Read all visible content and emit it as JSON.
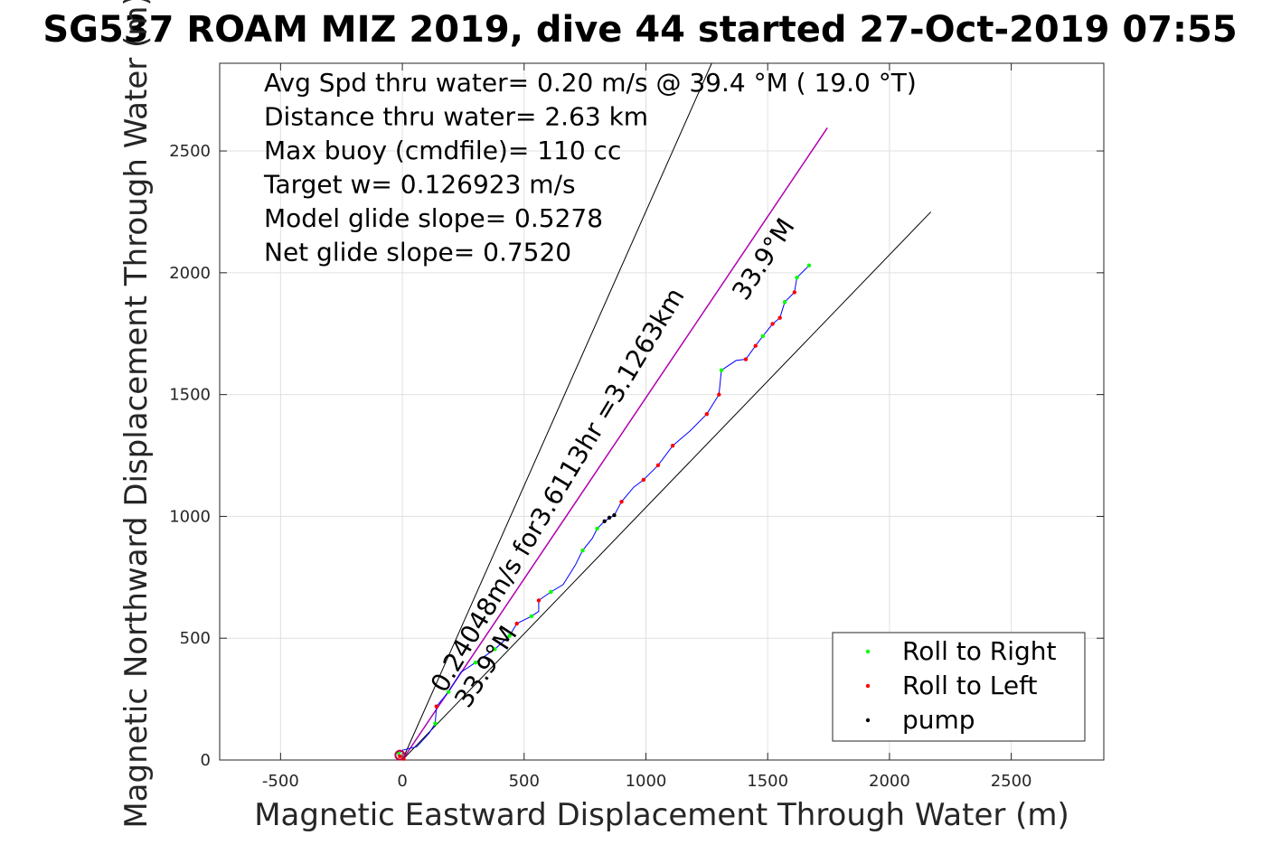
{
  "chart_data": {
    "type": "scatter",
    "title": "SG537 ROAM MIZ 2019, dive 44 started 27-Oct-2019 07:55",
    "xlabel": "Magnetic Eastward Displacement Through Water (m)",
    "ylabel": "Magnetic Northward Displacement Through Water (m)",
    "xlim": [
      -750,
      2880
    ],
    "ylim": [
      0,
      2860
    ],
    "xticks": [
      -500,
      0,
      500,
      1000,
      1500,
      2000,
      2500
    ],
    "yticks": [
      0,
      500,
      1000,
      1500,
      2000,
      2500
    ],
    "grid": true,
    "legend_position": "bottom-right",
    "info_lines": [
      "Avg Spd thru water=  0.20 m/s @  39.4 °M ( 19.0 °T)",
      "Distance thru water=  2.63 km",
      "Max buoy (cmdfile)= 110 cc",
      "Target w= 0.126923 m/s",
      "Model glide slope= 0.5278",
      "Net glide slope= 0.7520"
    ],
    "annotations": {
      "velocity": "0.24048m/s for3.6113hr =3.1263km",
      "heading_upper": "33.9°M",
      "heading_lower": "33.9°M"
    },
    "lines": {
      "cone_left_end": [
        1270,
        2860
      ],
      "cone_right_end": [
        2170,
        2250
      ],
      "heading_end": [
        1745,
        2595
      ],
      "heading_color": "#b000b0"
    },
    "track": {
      "name": "track",
      "color": "#0000ff",
      "points": [
        [
          -20,
          20
        ],
        [
          0,
          40
        ],
        [
          60,
          55
        ],
        [
          110,
          110
        ],
        [
          135,
          150
        ],
        [
          140,
          220
        ],
        [
          190,
          280
        ],
        [
          240,
          360
        ],
        [
          300,
          400
        ],
        [
          380,
          455
        ],
        [
          440,
          510
        ],
        [
          470,
          560
        ],
        [
          530,
          590
        ],
        [
          560,
          610
        ],
        [
          560,
          655
        ],
        [
          610,
          690
        ],
        [
          660,
          720
        ],
        [
          710,
          800
        ],
        [
          740,
          860
        ],
        [
          780,
          910
        ],
        [
          800,
          950
        ],
        [
          830,
          980
        ],
        [
          870,
          1005
        ],
        [
          900,
          1060
        ],
        [
          950,
          1120
        ],
        [
          990,
          1150
        ],
        [
          1050,
          1210
        ],
        [
          1110,
          1290
        ],
        [
          1180,
          1350
        ],
        [
          1250,
          1420
        ],
        [
          1300,
          1500
        ],
        [
          1310,
          1600
        ],
        [
          1370,
          1640
        ],
        [
          1410,
          1645
        ],
        [
          1450,
          1700
        ],
        [
          1480,
          1740
        ],
        [
          1520,
          1790
        ],
        [
          1550,
          1815
        ],
        [
          1570,
          1880
        ],
        [
          1610,
          1920
        ],
        [
          1620,
          1980
        ],
        [
          1670,
          2030
        ]
      ]
    },
    "series": [
      {
        "name": "Roll to Right",
        "color": "#00ff00",
        "points": [
          [
            -15,
            30
          ],
          [
            135,
            150
          ],
          [
            190,
            280
          ],
          [
            300,
            400
          ],
          [
            380,
            455
          ],
          [
            440,
            510
          ],
          [
            530,
            590
          ],
          [
            610,
            690
          ],
          [
            740,
            860
          ],
          [
            800,
            950
          ],
          [
            1310,
            1600
          ],
          [
            1480,
            1740
          ],
          [
            1570,
            1880
          ],
          [
            1620,
            1980
          ],
          [
            1670,
            2030
          ]
        ]
      },
      {
        "name": "Roll to Left",
        "color": "#ff0000",
        "points": [
          [
            -10,
            15
          ],
          [
            5,
            5
          ],
          [
            140,
            220
          ],
          [
            470,
            560
          ],
          [
            560,
            655
          ],
          [
            900,
            1060
          ],
          [
            990,
            1150
          ],
          [
            1050,
            1210
          ],
          [
            1110,
            1290
          ],
          [
            1250,
            1420
          ],
          [
            1300,
            1500
          ],
          [
            1410,
            1645
          ],
          [
            1450,
            1700
          ],
          [
            1520,
            1790
          ],
          [
            1550,
            1815
          ],
          [
            1610,
            1920
          ]
        ]
      },
      {
        "name": "pump",
        "color": "#000000",
        "points": [
          [
            830,
            980
          ],
          [
            850,
            995
          ],
          [
            870,
            1005
          ]
        ]
      }
    ]
  }
}
